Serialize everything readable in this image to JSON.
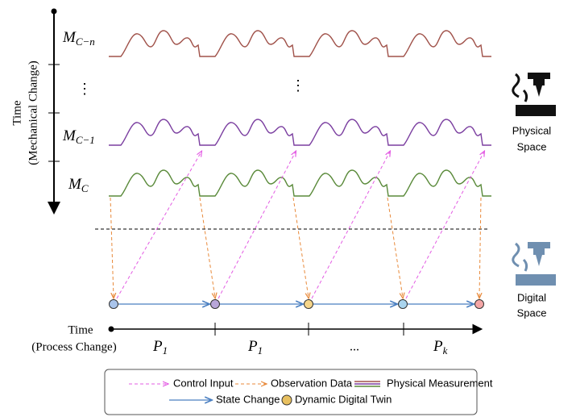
{
  "mechanical_axis": {
    "title": "Time",
    "subtitle": "(Mechanical Change)"
  },
  "rows": [
    {
      "label": {
        "base": "M",
        "sub": "C−n"
      }
    },
    {
      "label": {
        "base": "M",
        "sub": "C−1"
      }
    },
    {
      "label": {
        "base": "M",
        "sub": "C"
      }
    }
  ],
  "ellipses": [
    "⋮",
    "⋮"
  ],
  "physical_space": [
    "Physical",
    "Space"
  ],
  "digital_space": [
    "Digital",
    "Space"
  ],
  "process_axis": {
    "title": "Time",
    "subtitle": "(Process Change)"
  },
  "phases": [
    {
      "base": "P",
      "sub": "1"
    },
    {
      "base": "P",
      "sub": "1"
    },
    {
      "base": "P",
      "sub": "k"
    }
  ],
  "phase_ellipsis": "...",
  "legend": [
    "Control Input",
    "Observation Data",
    "Physical Measurement",
    "State Change",
    "Dynamic Digital Twin"
  ]
}
